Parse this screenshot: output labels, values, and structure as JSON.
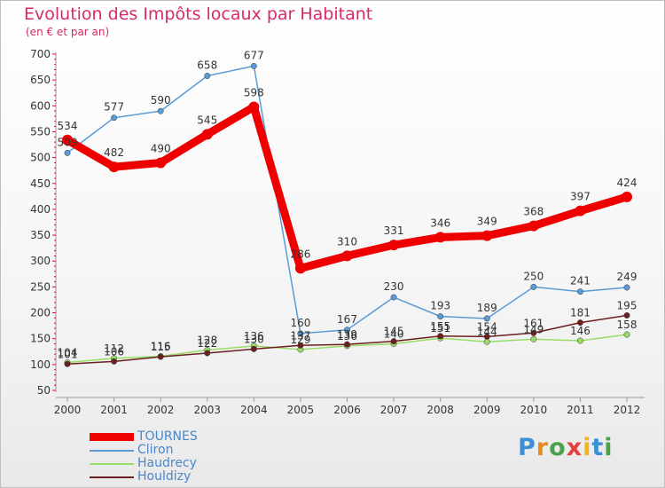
{
  "title": "Evolution des Impôts locaux par Habitant",
  "subtitle": "(en € et par an)",
  "logo": "Proxiti",
  "colors": {
    "title": "#d62a6c",
    "axis": "#e0003c",
    "tourne": "#ee0000",
    "cliron": "#5b9bd5",
    "haudrecy": "#99dd66",
    "houldizy": "#6b1f1f"
  },
  "chart_data": {
    "type": "line",
    "x": [
      "2000",
      "2001",
      "2002",
      "2003",
      "2004",
      "2005",
      "2006",
      "2007",
      "2008",
      "2009",
      "2010",
      "2011",
      "2012"
    ],
    "ylim": [
      50,
      700
    ],
    "yticks": [
      50,
      100,
      150,
      200,
      250,
      300,
      350,
      400,
      450,
      500,
      550,
      600,
      650,
      700
    ],
    "grid": false,
    "legend_position": "bottom-left",
    "series": [
      {
        "name": "TOURNES",
        "values": [
          534,
          482,
          490,
          545,
          598,
          286,
          310,
          331,
          346,
          349,
          368,
          397,
          424
        ],
        "color": "#ee0000",
        "labels": true
      },
      {
        "name": "Cliron",
        "values": [
          509,
          577,
          590,
          658,
          677,
          160,
          167,
          230,
          193,
          189,
          250,
          241,
          249
        ],
        "color": "#5b9bd5",
        "labels": true
      },
      {
        "name": "Haudrecy",
        "values": [
          104,
          112,
          116,
          128,
          136,
          129,
          136,
          140,
          151,
          144,
          149,
          146,
          158
        ],
        "color": "#99dd66",
        "labels": true
      },
      {
        "name": "Houldizy",
        "values": [
          101,
          106,
          115,
          122,
          130,
          137,
          139,
          145,
          155,
          154,
          161,
          181,
          195
        ],
        "color": "#6b1f1f",
        "labels": true
      }
    ]
  }
}
